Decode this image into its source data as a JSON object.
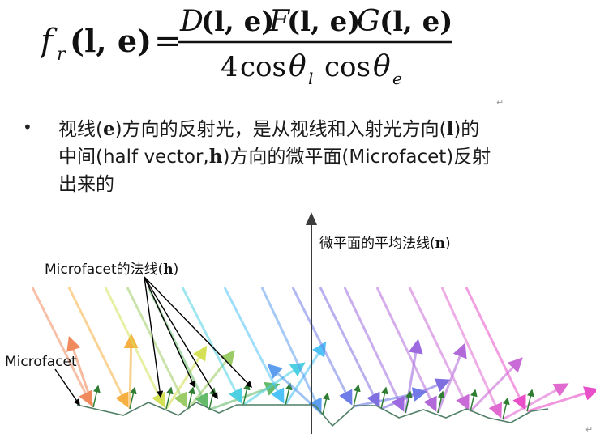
{
  "formula": {
    "lhs_f": "f",
    "lhs_sub": "r",
    "lhs_args": "(l, e)",
    "equals": "=",
    "numerator": [
      {
        "fn": "D",
        "args": "(l, e)"
      },
      {
        "fn": "F",
        "args": "(l, e)"
      },
      {
        "fn": "G",
        "args": "(l, e)"
      }
    ],
    "denominator": {
      "coef": "4",
      "cos1": "cos",
      "theta1": "θ",
      "sub1": "l",
      "cos2": "cos",
      "theta2": "θ",
      "sub2": "e"
    }
  },
  "bullet": {
    "symbol": "•",
    "line1_a": "视线(",
    "line1_e": "e",
    "line1_b": ")方向的反射光，是从视线和入射光方向(",
    "line1_l": "l",
    "line1_c": ")的",
    "line2_a": "中间(half vector,",
    "line2_h": "h",
    "line2_b": ")方向的微平面(Microfacet)反射",
    "line3": "出来的"
  },
  "figure": {
    "normal_label": "微平面的平均法线(",
    "normal_symbol": "n",
    "normal_label_end": ")",
    "microfacet_normal_label": "Microfacet的法线(",
    "microfacet_normal_symbol": "h",
    "microfacet_normal_end": ")",
    "microfacet_label": "Microfacet"
  },
  "paragraph_marks": [
    "↵",
    "↵"
  ],
  "colors": {
    "surface": "#4f7f66",
    "axis": "#3c3c3c",
    "normal_arrow": "#2e7d32",
    "pointer": "#000000"
  }
}
